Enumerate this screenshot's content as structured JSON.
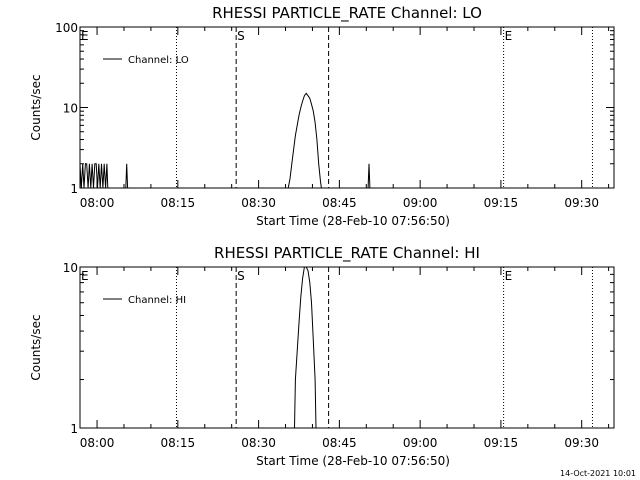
{
  "footer": {
    "timestamp": "14-Oct-2021 10:01"
  },
  "chart_data": [
    {
      "type": "line",
      "title": "RHESSI PARTICLE_RATE Channel: LO",
      "xlabel": "Start Time (28-Feb-10 07:56:50)",
      "ylabel": "Counts/sec",
      "yscale": "log",
      "ylim": [
        1,
        100
      ],
      "xlim": [
        "07:56:50",
        "09:36:00"
      ],
      "x_ticks": [
        "08:00",
        "08:15",
        "08:30",
        "08:45",
        "09:00",
        "09:15",
        "09:30"
      ],
      "y_ticks": [
        "1",
        "10",
        "100"
      ],
      "legend": {
        "position": "top-left",
        "entries": [
          "Channel: LO"
        ]
      },
      "markers": [
        {
          "label": "E",
          "time": "07:56:50",
          "style": "none"
        },
        {
          "label": "",
          "time": "08:14:45",
          "style": "dotted"
        },
        {
          "label": "S",
          "time": "08:25:50",
          "style": "dashed"
        },
        {
          "label": "",
          "time": "08:43:00",
          "style": "dashed"
        },
        {
          "label": "E",
          "time": "09:15:30",
          "style": "dotted"
        },
        {
          "label": "",
          "time": "09:32:00",
          "style": "dotted"
        }
      ],
      "series": [
        {
          "name": "Channel: LO",
          "points": [
            [
              "07:56:50",
              2
            ],
            [
              "07:57:05",
              1
            ],
            [
              "07:57:20",
              2
            ],
            [
              "07:57:35",
              1
            ],
            [
              "07:57:50",
              2
            ],
            [
              "07:58:05",
              2
            ],
            [
              "07:58:20",
              1
            ],
            [
              "07:58:35",
              2
            ],
            [
              "07:58:50",
              1
            ],
            [
              "07:59:05",
              2
            ],
            [
              "07:59:20",
              1
            ],
            [
              "07:59:35",
              2
            ],
            [
              "07:59:50",
              2
            ],
            [
              "08:00:05",
              1
            ],
            [
              "08:00:20",
              2
            ],
            [
              "08:00:35",
              1
            ],
            [
              "08:00:50",
              2
            ],
            [
              "08:01:05",
              1
            ],
            [
              "08:01:20",
              2
            ],
            [
              "08:01:35",
              1
            ],
            [
              "08:01:50",
              2
            ],
            [
              "08:02:00",
              1
            ],
            [
              "08:05:20",
              1
            ],
            [
              "08:05:30",
              2
            ],
            [
              "08:05:40",
              1
            ],
            [
              "08:35:30",
              1
            ],
            [
              "08:35:50",
              1.3
            ],
            [
              "08:36:10",
              2
            ],
            [
              "08:36:30",
              3
            ],
            [
              "08:36:50",
              4.5
            ],
            [
              "08:37:10",
              6
            ],
            [
              "08:37:30",
              8
            ],
            [
              "08:37:50",
              10
            ],
            [
              "08:38:10",
              12
            ],
            [
              "08:38:30",
              14
            ],
            [
              "08:38:50",
              15
            ],
            [
              "08:39:10",
              14
            ],
            [
              "08:39:30",
              13
            ],
            [
              "08:39:50",
              11
            ],
            [
              "08:40:10",
              9
            ],
            [
              "08:40:30",
              6.5
            ],
            [
              "08:40:50",
              4
            ],
            [
              "08:41:10",
              2
            ],
            [
              "08:41:30",
              1.2
            ],
            [
              "08:41:40",
              1
            ],
            [
              "08:50:20",
              1
            ],
            [
              "08:50:30",
              2
            ],
            [
              "08:50:40",
              1
            ]
          ]
        }
      ]
    },
    {
      "type": "line",
      "title": "RHESSI PARTICLE_RATE Channel: HI",
      "xlabel": "Start Time (28-Feb-10 07:56:50)",
      "ylabel": "Counts/sec",
      "yscale": "log",
      "ylim": [
        1,
        10
      ],
      "xlim": [
        "07:56:50",
        "09:36:00"
      ],
      "x_ticks": [
        "08:00",
        "08:15",
        "08:30",
        "08:45",
        "09:00",
        "09:15",
        "09:30"
      ],
      "y_ticks": [
        "1",
        "10"
      ],
      "legend": {
        "position": "top-left",
        "entries": [
          "Channel: HI"
        ]
      },
      "markers": [
        {
          "label": "E",
          "time": "07:56:50",
          "style": "none"
        },
        {
          "label": "",
          "time": "08:14:45",
          "style": "dotted"
        },
        {
          "label": "S",
          "time": "08:25:50",
          "style": "dashed"
        },
        {
          "label": "",
          "time": "08:43:00",
          "style": "dashed"
        },
        {
          "label": "E",
          "time": "09:15:30",
          "style": "dotted"
        },
        {
          "label": "",
          "time": "09:32:00",
          "style": "dotted"
        }
      ],
      "series": [
        {
          "name": "Channel: HI",
          "points": [
            [
              "08:36:40",
              1
            ],
            [
              "08:36:50",
              2
            ],
            [
              "08:37:10",
              3
            ],
            [
              "08:37:30",
              4.5
            ],
            [
              "08:37:50",
              6.5
            ],
            [
              "08:38:10",
              8.5
            ],
            [
              "08:38:30",
              10
            ],
            [
              "08:38:50",
              10
            ],
            [
              "08:39:10",
              9.5
            ],
            [
              "08:39:30",
              8
            ],
            [
              "08:39:50",
              6
            ],
            [
              "08:40:10",
              3.5
            ],
            [
              "08:40:30",
              2
            ],
            [
              "08:40:40",
              1
            ]
          ]
        }
      ]
    }
  ]
}
